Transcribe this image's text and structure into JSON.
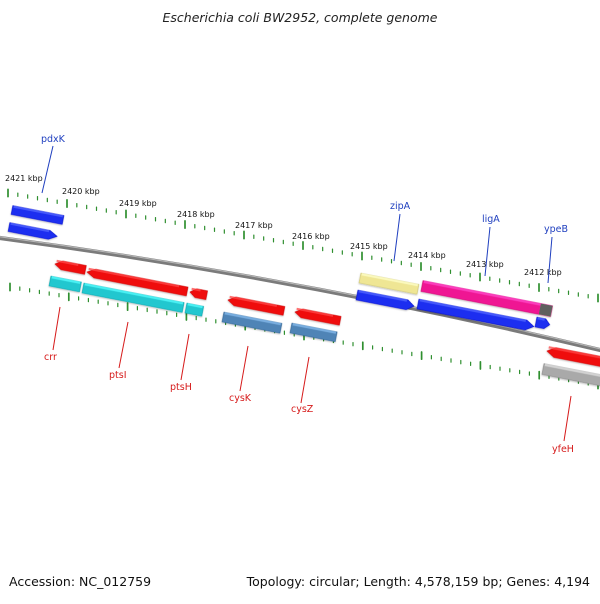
{
  "title": "Escherichia coli BW2952, complete genome",
  "accession": "Accession: NC_012759",
  "summary": "Topology: circular; Length: 4,578,159 bp; Genes: 4,194",
  "scale_labels": [
    "2421 kbp",
    "2420 kbp",
    "2419 kbp",
    "2418 kbp",
    "2417 kbp",
    "2416 kbp",
    "2415 kbp",
    "2414 kbp",
    "2413 kbp",
    "2412 kbp"
  ],
  "gene_labels": {
    "top": [
      "pdxK",
      "zipA",
      "ligA",
      "ypeB"
    ],
    "bottom": [
      "crr",
      "ptsI",
      "ptsH",
      "cysK",
      "cysZ",
      "yfeH"
    ]
  },
  "colors": {
    "backbone": "#7b7b7b",
    "tick": "#2f8f2f",
    "top_label": "#1f3fbf",
    "bottom_label": "#d61b1b",
    "blue": "#1a2ff0",
    "red": "#ef1010",
    "cyan": "#20c7cf",
    "steel": "#4f84b6",
    "yellow": "#efe694",
    "magenta": "#ef1493",
    "gray": "#a9a9a9",
    "dark_gray": "#5f5f5f"
  }
}
